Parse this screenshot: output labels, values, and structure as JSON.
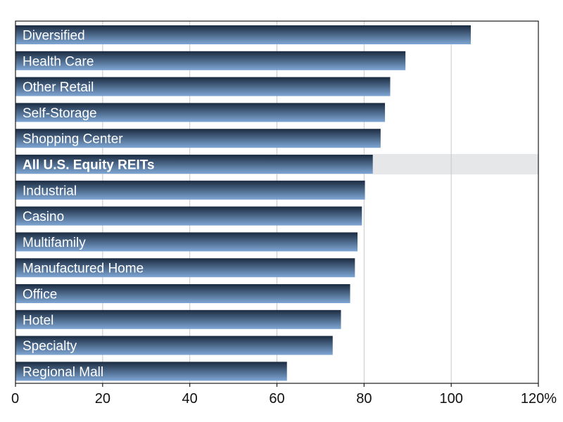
{
  "chart_data": {
    "type": "bar",
    "orientation": "horizontal",
    "categories": [
      "Diversified",
      "Health Care",
      "Other Retail",
      "Self-Storage",
      "Shopping Center",
      "All U.S. Equity REITs",
      "Industrial",
      "Casino",
      "Multifamily",
      "Manufactured Home",
      "Office",
      "Hotel",
      "Specialty",
      "Regional Mall"
    ],
    "values": [
      104.5,
      89.5,
      86,
      84.8,
      83.8,
      82,
      80.2,
      79.5,
      78.5,
      77.9,
      76.8,
      74.7,
      72.8,
      62.3
    ],
    "highlighted_category": "All U.S. Equity REITs",
    "xlim": [
      0,
      120
    ],
    "xticks": [
      "0",
      "20",
      "40",
      "60",
      "80",
      "100",
      "120%"
    ],
    "grid": "vertical",
    "colors": {
      "bar_dark": "#1b2b40",
      "bar_light": "#7ea6d4",
      "highlight_band": "#e6e7e9",
      "grid": "#c8c8c8",
      "frame": "#1a1a1a"
    }
  }
}
